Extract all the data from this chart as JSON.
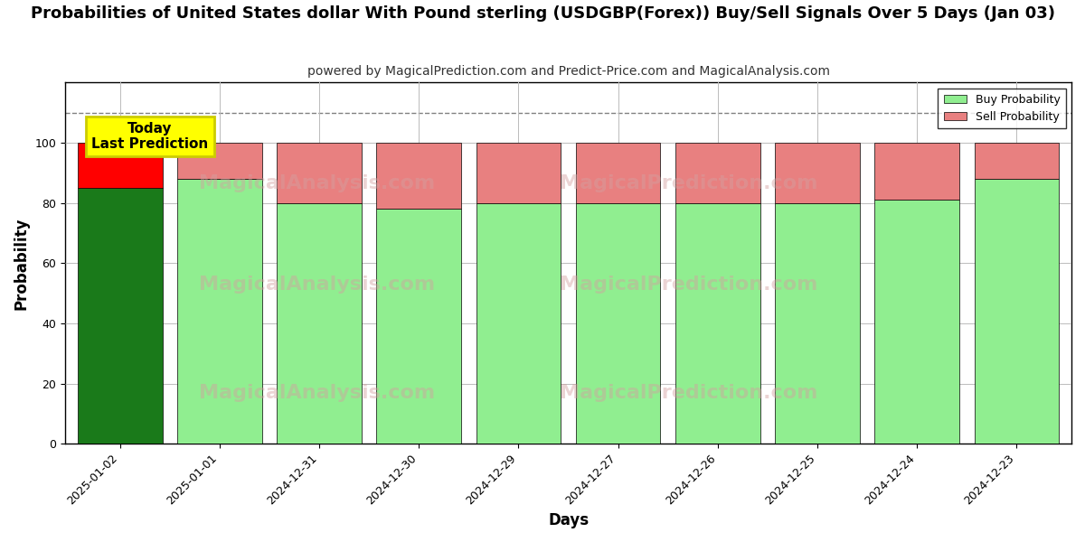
{
  "title": "Probabilities of United States dollar With Pound sterling (USDGBP(Forex)) Buy/Sell Signals Over 5 Days (Jan 03)",
  "subtitle": "powered by MagicalPrediction.com and Predict-Price.com and MagicalAnalysis.com",
  "xlabel": "Days",
  "ylabel": "Probability",
  "categories": [
    "2025-01-02",
    "2025-01-01",
    "2024-12-31",
    "2024-12-30",
    "2024-12-29",
    "2024-12-27",
    "2024-12-26",
    "2024-12-25",
    "2024-12-24",
    "2024-12-23"
  ],
  "buy_values": [
    85,
    88,
    80,
    78,
    80,
    80,
    80,
    80,
    81,
    88
  ],
  "sell_values": [
    15,
    12,
    20,
    22,
    20,
    20,
    20,
    20,
    19,
    12
  ],
  "first_bar_buy_color": "#1a7a1a",
  "first_bar_sell_color": "#ff0000",
  "other_buy_color": "#90EE90",
  "other_sell_color": "#E88080",
  "bar_edge_color": "#000000",
  "ylim": [
    0,
    120
  ],
  "yticks": [
    0,
    20,
    40,
    60,
    80,
    100
  ],
  "dashed_line_y": 110,
  "annotation_text": "Today\nLast Prediction",
  "annotation_bg": "#ffff00",
  "annotation_edge": "#cccc00",
  "legend_buy_label": "Buy Probability",
  "legend_sell_label": "Sell Probability",
  "background_color": "#ffffff",
  "plot_bg_color": "#ffffff",
  "grid_color": "#bbbbbb",
  "title_fontsize": 13,
  "subtitle_fontsize": 10,
  "axis_label_fontsize": 12,
  "tick_fontsize": 9,
  "bar_width": 0.85
}
